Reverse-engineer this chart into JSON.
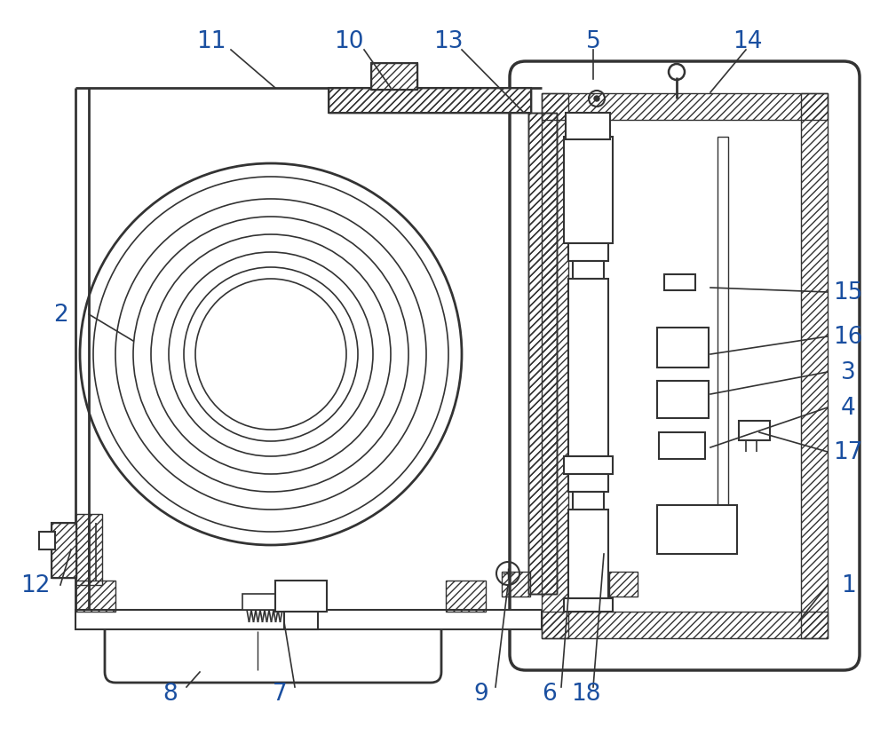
{
  "bg_color": "#ffffff",
  "line_color": "#333333",
  "label_color": "#1a4fa0",
  "label_fontsize": 19,
  "lw_thick": 2.0,
  "lw_med": 1.5,
  "lw_thin": 1.0
}
